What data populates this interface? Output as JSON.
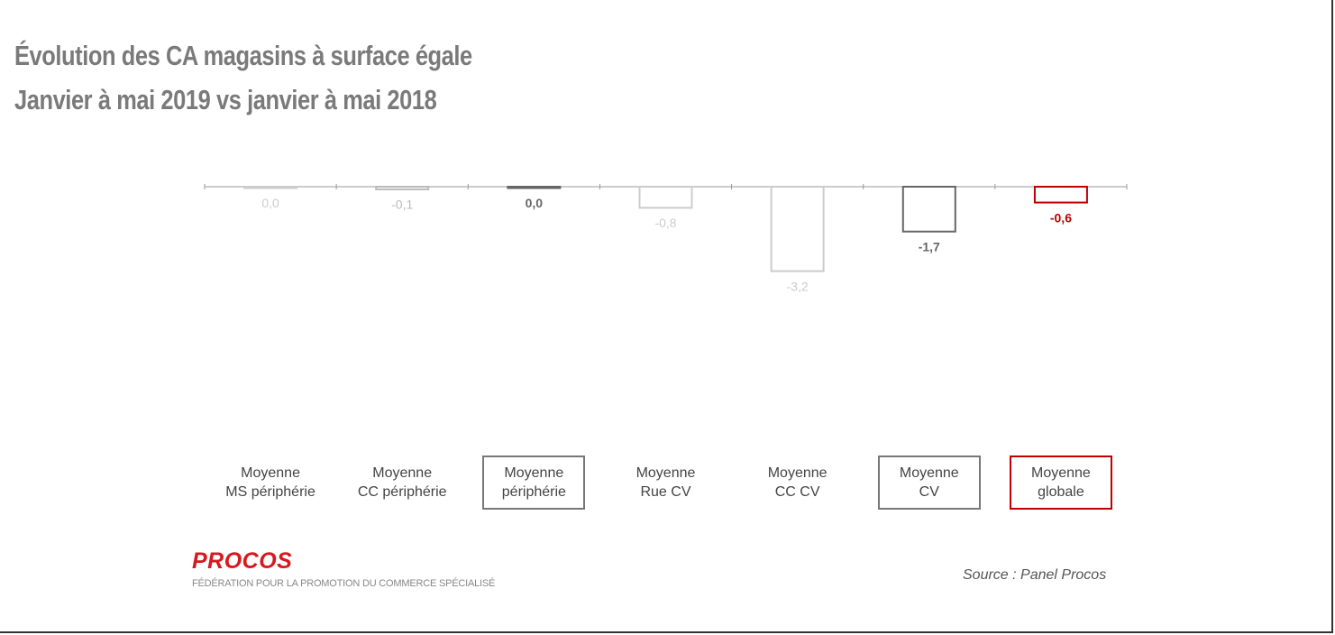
{
  "chart_data": {
    "type": "bar",
    "title": "Évolution des CA magasins à surface égale",
    "subtitle": "Janvier à mai 2019 vs janvier à mai 2018",
    "categories": [
      "Moyenne\nMS périphérie",
      "Moyenne\nCC périphérie",
      "Moyenne\npériphérie",
      "Moyenne\nRue CV",
      "Moyenne\nCC CV",
      "Moyenne\nCV",
      "Moyenne\nglobale"
    ],
    "values": [
      0.0,
      -0.1,
      0.0,
      -0.8,
      -3.2,
      -1.7,
      -0.6
    ],
    "value_labels": [
      "0,0",
      "-0,1",
      "0,0",
      "-0,8",
      "-3,2",
      "-1,7",
      "-0,6"
    ],
    "colors": [
      "#cccccc",
      "#bbbbbb",
      "#666666",
      "#cccccc",
      "#cccccc",
      "#666666",
      "#c00000"
    ],
    "boxed": [
      false,
      false,
      true,
      false,
      false,
      true,
      true
    ],
    "ylim": [
      -4,
      0
    ],
    "logo": "PROCOS",
    "logo_subtitle": "FÉDÉRATION POUR LA PROMOTION DU COMMERCE SPÉCIALISÉ",
    "source": "Source : Panel Procos"
  }
}
